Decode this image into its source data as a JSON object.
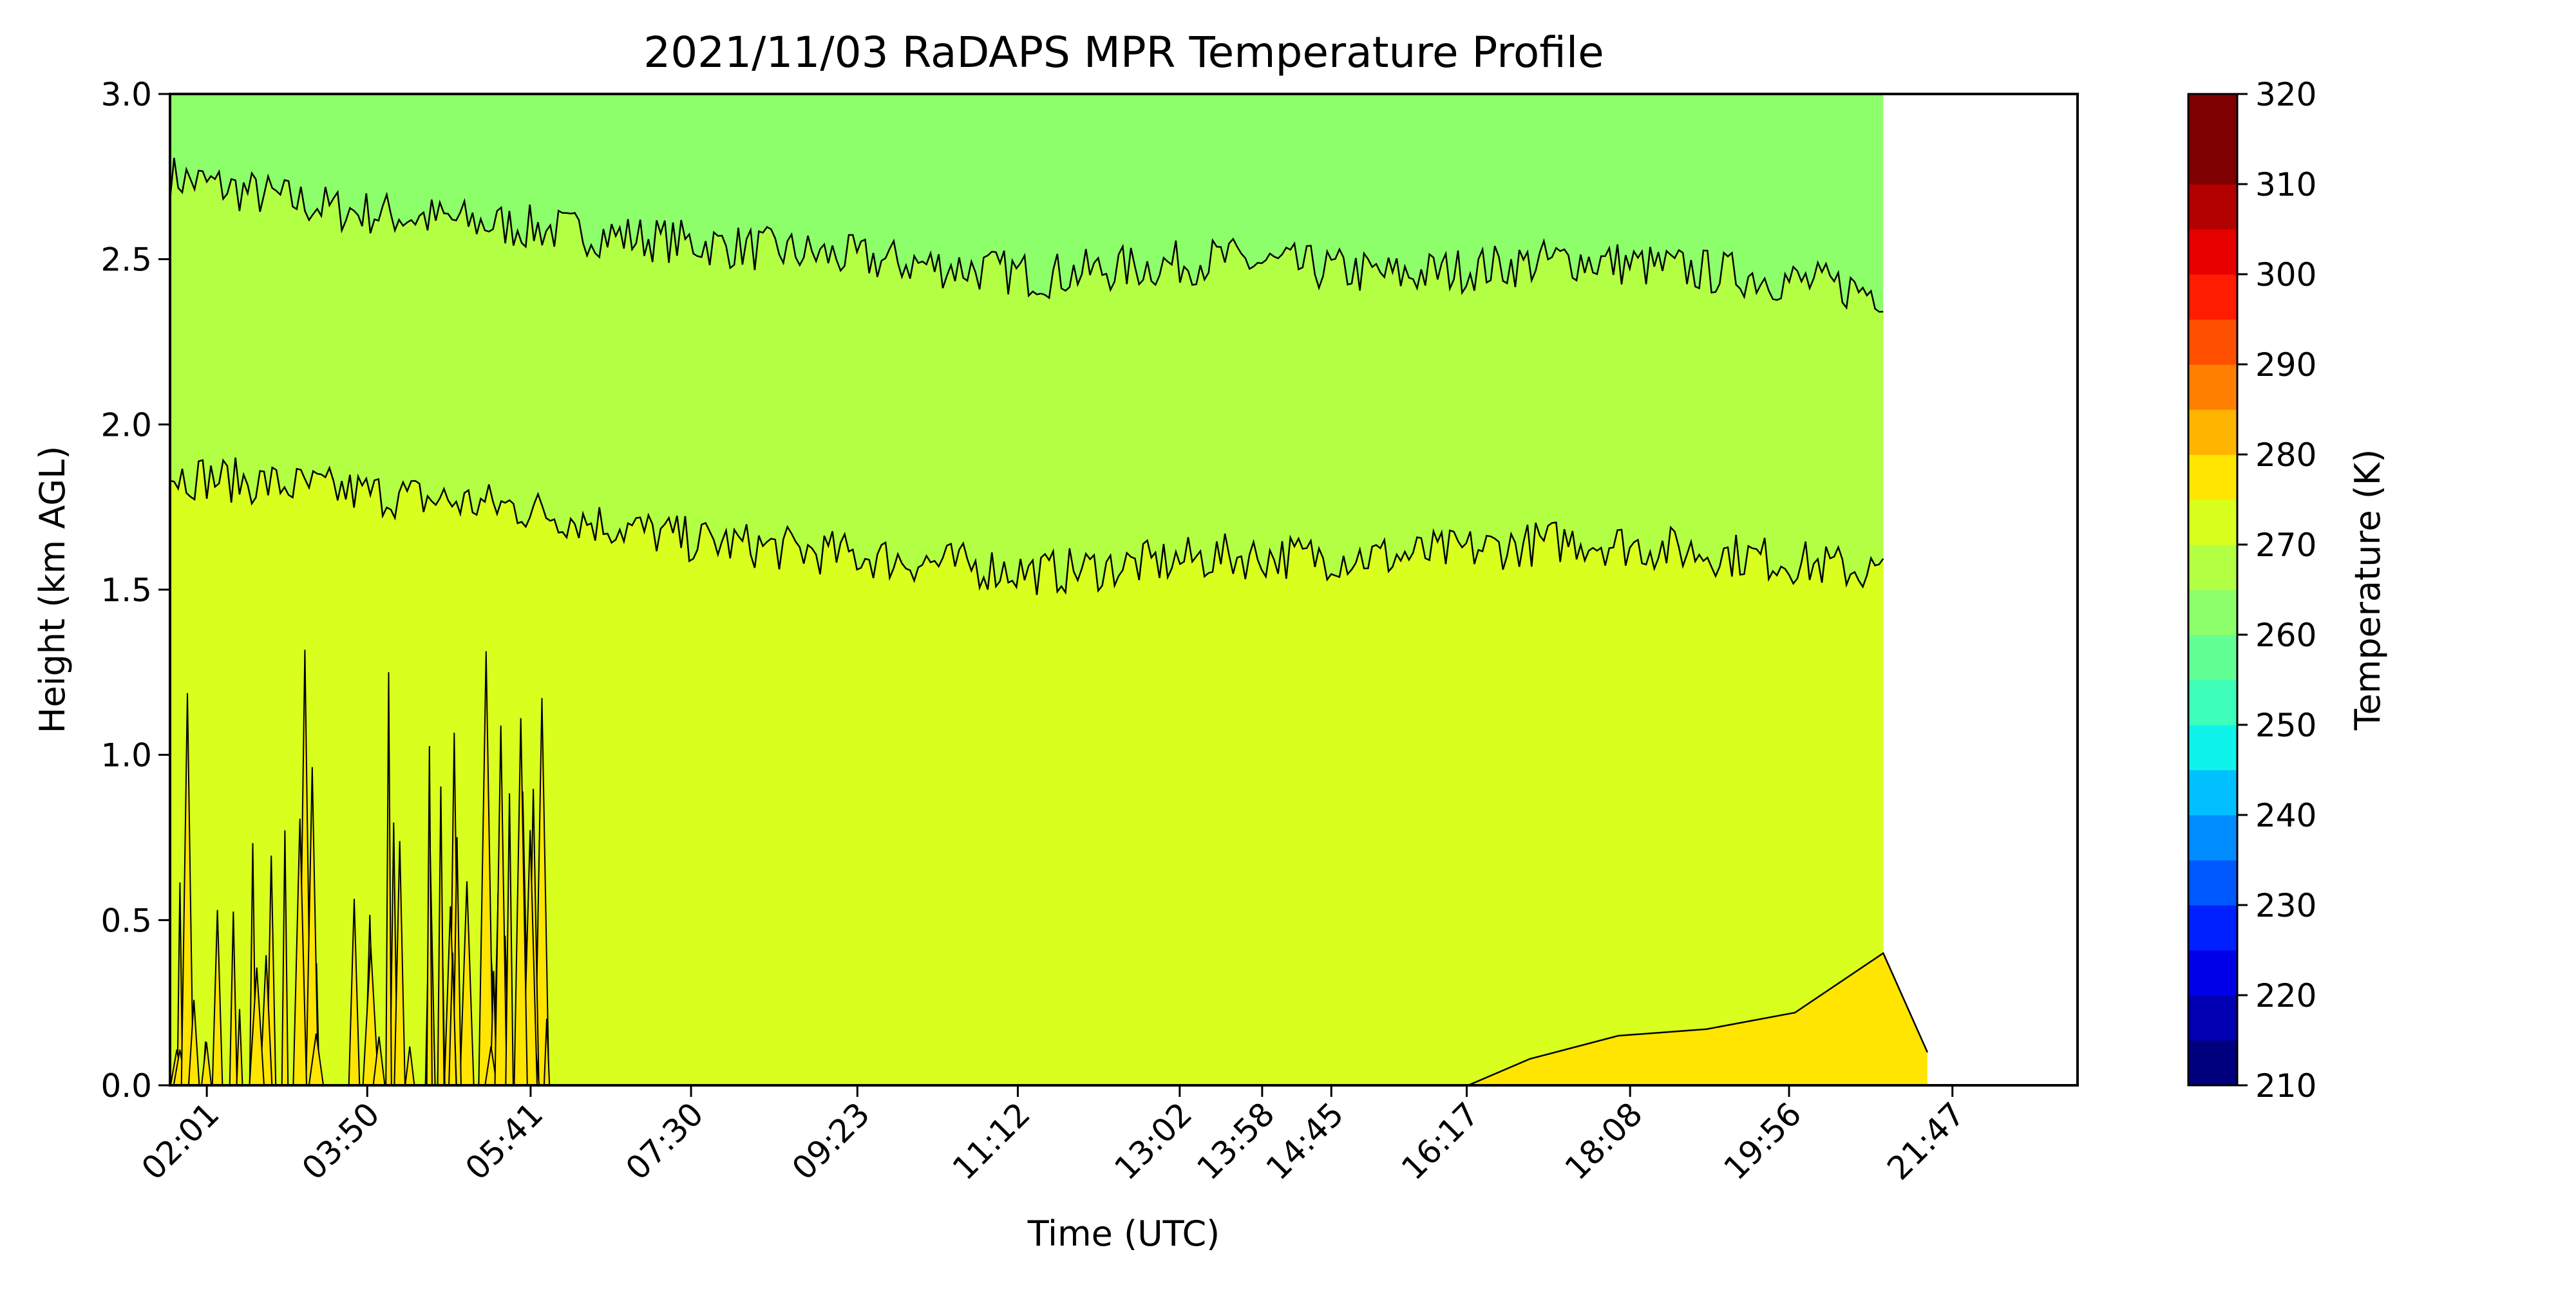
{
  "chart_data": {
    "type": "heatmap",
    "title": "2021/11/03 RaDAPS MPR Temperature Profile",
    "xlabel": "Time (UTC)",
    "ylabel": "Height (km AGL)",
    "ylim": [
      0,
      3
    ],
    "yticks": [
      "0.0",
      "0.5",
      "1.0",
      "1.5",
      "2.0",
      "2.5",
      "3.0"
    ],
    "xlim_hours": [
      1.6,
      23.2
    ],
    "xticks": [
      {
        "label": "02:01",
        "hour": 2.0167
      },
      {
        "label": "03:50",
        "hour": 3.8333
      },
      {
        "label": "05:41",
        "hour": 5.6833
      },
      {
        "label": "07:30",
        "hour": 7.5
      },
      {
        "label": "09:23",
        "hour": 9.3833
      },
      {
        "label": "11:12",
        "hour": 11.2
      },
      {
        "label": "13:02",
        "hour": 13.0333
      },
      {
        "label": "13:58",
        "hour": 13.9667
      },
      {
        "label": "14:45",
        "hour": 14.75
      },
      {
        "label": "16:17",
        "hour": 16.2833
      },
      {
        "label": "18:08",
        "hour": 18.1333
      },
      {
        "label": "19:56",
        "hour": 19.9333
      },
      {
        "label": "21:47",
        "hour": 21.7833
      }
    ],
    "colorbar": {
      "label": "Temperature (K)",
      "min": 210,
      "max": 320,
      "step": 5,
      "ticks": [
        "210",
        "220",
        "230",
        "240",
        "250",
        "260",
        "270",
        "280",
        "290",
        "300",
        "310",
        "320"
      ],
      "colors": [
        "#00007f",
        "#0000b2",
        "#0000e8",
        "#0020ff",
        "#0058ff",
        "#008cff",
        "#00c0ff",
        "#0ff4ea",
        "#3dffba",
        "#62ff94",
        "#8dff6a",
        "#b3ff44",
        "#d9ff1e",
        "#ffe500",
        "#ffb400",
        "#ff8000",
        "#ff4f00",
        "#ff1c00",
        "#e70000",
        "#b30000",
        "#7f0000",
        "#7f0000"
      ]
    },
    "temperature_levels": [
      {
        "range_K": [
          265,
          270
        ],
        "color": "#8dff6a",
        "approx_height_km": "2.5 - 3.0"
      },
      {
        "range_K": [
          270,
          275
        ],
        "color": "#b3ff44",
        "approx_height_km": "1.6 - 2.5"
      },
      {
        "range_K": [
          275,
          280
        ],
        "color": "#d9ff1e",
        "approx_height_km": "0.0 - 1.6"
      },
      {
        "range_K": [
          280,
          285
        ],
        "color": "#ffe500",
        "approx_height_km": "0.0 - 0.3"
      }
    ],
    "contours": [
      {
        "name": "upper boundary (≈270 K)",
        "hours": [
          1.6,
          3.5,
          5.5,
          7.5,
          9.5,
          11.5,
          13.5,
          15.5,
          17.5,
          19.5,
          21.0
        ],
        "height_km": [
          2.75,
          2.65,
          2.6,
          2.55,
          2.5,
          2.45,
          2.5,
          2.45,
          2.5,
          2.45,
          2.4
        ]
      },
      {
        "name": "middle boundary (≈275 K)",
        "hours": [
          1.6,
          3.5,
          5.5,
          7.5,
          9.5,
          11.5,
          13.5,
          15.5,
          17.5,
          19.5,
          21.0
        ],
        "height_km": [
          1.85,
          1.8,
          1.75,
          1.65,
          1.6,
          1.55,
          1.6,
          1.6,
          1.65,
          1.6,
          1.55
        ]
      },
      {
        "name": "lower boundary (≈280 K)",
        "hours": [
          16.3,
          17.0,
          18.0,
          19.0,
          20.0,
          21.0,
          21.5
        ],
        "height_km": [
          0.0,
          0.08,
          0.15,
          0.17,
          0.22,
          0.4,
          0.1
        ]
      }
    ]
  }
}
